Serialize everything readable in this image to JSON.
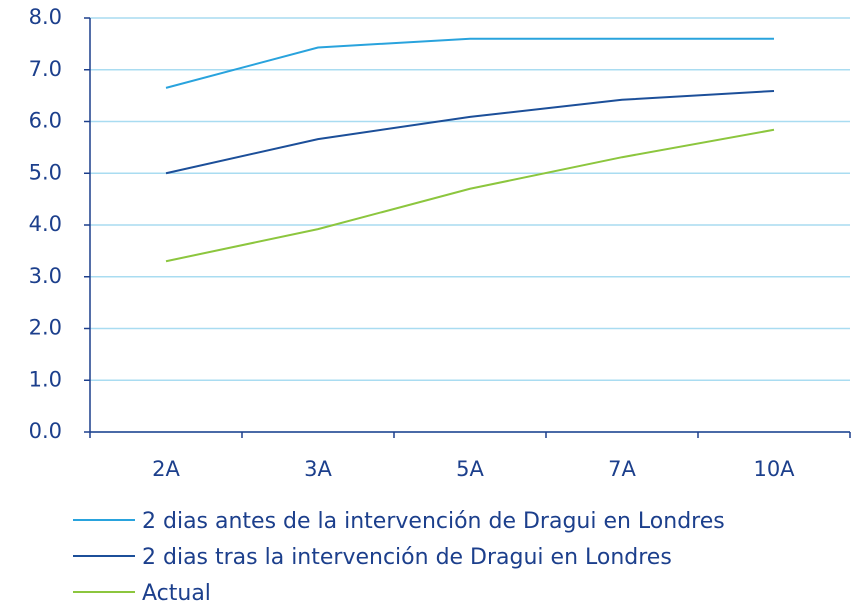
{
  "chart_data": {
    "type": "line",
    "categories": [
      "2A",
      "3A",
      "5A",
      "7A",
      "10A"
    ],
    "series": [
      {
        "name": "2 dias antes de la intervención de Dragui en Londres",
        "color": "#29a3dd",
        "values": [
          6.65,
          7.43,
          7.6,
          7.6,
          7.6
        ]
      },
      {
        "name": "2 dias tras la intervención de Dragui en Londres",
        "color": "#1c4f99",
        "values": [
          5.0,
          5.66,
          6.09,
          6.42,
          6.59
        ]
      },
      {
        "name": "Actual",
        "color": "#8cc63e",
        "values": [
          3.3,
          3.92,
          4.7,
          5.31,
          5.84
        ]
      }
    ],
    "ylim": [
      0,
      8
    ],
    "yticks": [
      {
        "value": 0,
        "label": "0.0"
      },
      {
        "value": 1,
        "label": "1.0"
      },
      {
        "value": 2,
        "label": "2.0"
      },
      {
        "value": 3,
        "label": "3.0"
      },
      {
        "value": 4,
        "label": "4.0"
      },
      {
        "value": 5,
        "label": "5.0"
      },
      {
        "value": 6,
        "label": "6.0"
      },
      {
        "value": 7,
        "label": "7.0"
      },
      {
        "value": 8,
        "label": "8.0"
      }
    ],
    "grid": true,
    "legend": "bottom"
  }
}
